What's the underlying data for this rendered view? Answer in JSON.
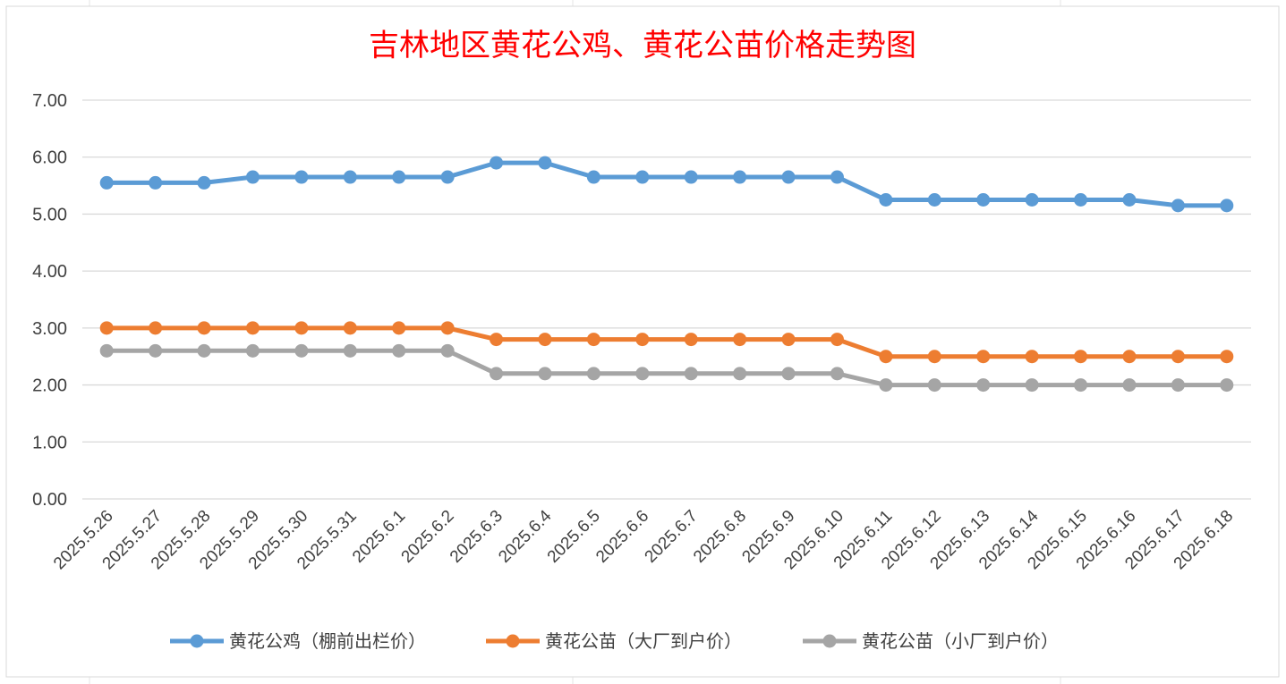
{
  "chart_data": {
    "type": "line",
    "title": "吉林地区黄花公鸡、黄花公苗价格走势图",
    "xlabel": "",
    "ylabel": "",
    "ylim": [
      0,
      7
    ],
    "yticks": [
      "0.00",
      "1.00",
      "2.00",
      "3.00",
      "4.00",
      "5.00",
      "6.00",
      "7.00"
    ],
    "grid": true,
    "legend_position": "bottom",
    "categories": [
      "2025.5.26",
      "2025.5.27",
      "2025.5.28",
      "2025.5.29",
      "2025.5.30",
      "2025.5.31",
      "2025.6.1",
      "2025.6.2",
      "2025.6.3",
      "2025.6.4",
      "2025.6.5",
      "2025.6.6",
      "2025.6.7",
      "2025.6.8",
      "2025.6.9",
      "2025.6.10",
      "2025.6.11",
      "2025.6.12",
      "2025.6.13",
      "2025.6.14",
      "2025.6.15",
      "2025.6.16",
      "2025.6.17",
      "2025.6.18"
    ],
    "series": [
      {
        "name": "黄花公鸡（棚前出栏价）",
        "color": "#5b9bd5",
        "values": [
          5.55,
          5.55,
          5.55,
          5.65,
          5.65,
          5.65,
          5.65,
          5.65,
          5.9,
          5.9,
          5.65,
          5.65,
          5.65,
          5.65,
          5.65,
          5.65,
          5.25,
          5.25,
          5.25,
          5.25,
          5.25,
          5.25,
          5.15,
          5.15
        ]
      },
      {
        "name": "黄花公苗（大厂到户价）",
        "color": "#ed7d31",
        "values": [
          3.0,
          3.0,
          3.0,
          3.0,
          3.0,
          3.0,
          3.0,
          3.0,
          2.8,
          2.8,
          2.8,
          2.8,
          2.8,
          2.8,
          2.8,
          2.8,
          2.5,
          2.5,
          2.5,
          2.5,
          2.5,
          2.5,
          2.5,
          2.5
        ]
      },
      {
        "name": "黄花公苗（小厂到户价）",
        "color": "#a5a5a5",
        "values": [
          2.6,
          2.6,
          2.6,
          2.6,
          2.6,
          2.6,
          2.6,
          2.6,
          2.2,
          2.2,
          2.2,
          2.2,
          2.2,
          2.2,
          2.2,
          2.2,
          2.0,
          2.0,
          2.0,
          2.0,
          2.0,
          2.0,
          2.0,
          2.0
        ]
      }
    ]
  }
}
